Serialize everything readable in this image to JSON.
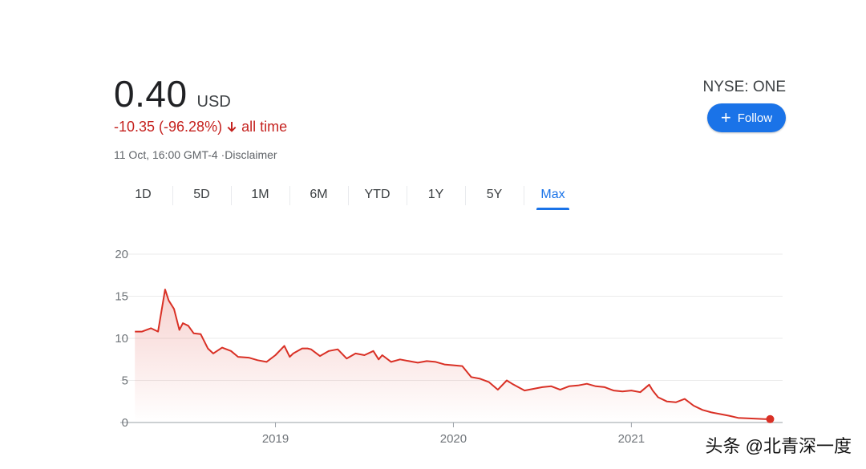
{
  "header": {
    "price": "0.40",
    "currency": "USD",
    "change": "-10.35 (-96.28%)",
    "period": "all time",
    "timestamp": "11 Oct, 16:00 GMT-4 ·Disclaimer",
    "ticker": "NYSE: ONE",
    "follow_label": "Follow"
  },
  "tabs": [
    {
      "label": "1D"
    },
    {
      "label": "5D"
    },
    {
      "label": "1M"
    },
    {
      "label": "6M"
    },
    {
      "label": "YTD"
    },
    {
      "label": "1Y"
    },
    {
      "label": "5Y"
    },
    {
      "label": "Max"
    }
  ],
  "active_tab": "Max",
  "watermark": "头条 @北青深一度",
  "colors": {
    "line": "#d93025",
    "accent": "#1a73e8",
    "negative": "#c5221f"
  },
  "chart_data": {
    "type": "line",
    "ylim": [
      0,
      20
    ],
    "yticks": [
      "0",
      "5",
      "10",
      "15",
      "20"
    ],
    "xlim": [
      2018.2,
      2021.85
    ],
    "xticks": [
      {
        "value": 2019,
        "label": "2019"
      },
      {
        "value": 2020,
        "label": "2020"
      },
      {
        "value": 2021,
        "label": "2021"
      }
    ],
    "grid": true,
    "series": [
      {
        "x": [
          2018.21,
          2018.25,
          2018.3,
          2018.34,
          2018.38,
          2018.4,
          2018.43,
          2018.46,
          2018.48,
          2018.51,
          2018.54,
          2018.58,
          2018.62,
          2018.65,
          2018.7,
          2018.75,
          2018.79,
          2018.85,
          2018.9,
          2018.95,
          2019.0,
          2019.05,
          2019.08,
          2019.1,
          2019.15,
          2019.18,
          2019.2,
          2019.25,
          2019.3,
          2019.35,
          2019.4,
          2019.45,
          2019.5,
          2019.55,
          2019.58,
          2019.6,
          2019.65,
          2019.7,
          2019.75,
          2019.8,
          2019.85,
          2019.9,
          2019.95,
          2020.0,
          2020.05,
          2020.1,
          2020.15,
          2020.2,
          2020.25,
          2020.3,
          2020.33,
          2020.4,
          2020.45,
          2020.5,
          2020.55,
          2020.6,
          2020.65,
          2020.7,
          2020.75,
          2020.8,
          2020.85,
          2020.9,
          2020.95,
          2021.0,
          2021.05,
          2021.1,
          2021.12,
          2021.15,
          2021.2,
          2021.25,
          2021.3,
          2021.35,
          2021.4,
          2021.45,
          2021.5,
          2021.55,
          2021.6,
          2021.65,
          2021.7,
          2021.75,
          2021.78
        ],
        "y": [
          10.8,
          10.8,
          11.2,
          10.8,
          15.8,
          14.5,
          13.5,
          11.0,
          11.8,
          11.5,
          10.6,
          10.5,
          8.8,
          8.2,
          8.9,
          8.5,
          7.8,
          7.7,
          7.4,
          7.2,
          8.0,
          9.1,
          7.8,
          8.2,
          8.8,
          8.8,
          8.7,
          7.9,
          8.5,
          8.7,
          7.6,
          8.2,
          8.0,
          8.5,
          7.5,
          8.0,
          7.2,
          7.5,
          7.3,
          7.1,
          7.3,
          7.2,
          6.9,
          6.8,
          6.7,
          5.4,
          5.2,
          4.8,
          3.9,
          5.0,
          4.6,
          3.8,
          4.0,
          4.2,
          4.3,
          3.9,
          4.3,
          4.4,
          4.6,
          4.3,
          4.2,
          3.8,
          3.7,
          3.8,
          3.6,
          4.5,
          3.8,
          3.0,
          2.5,
          2.4,
          2.8,
          2.0,
          1.5,
          1.2,
          1.0,
          0.8,
          0.55,
          0.5,
          0.45,
          0.4,
          0.4
        ]
      }
    ]
  }
}
